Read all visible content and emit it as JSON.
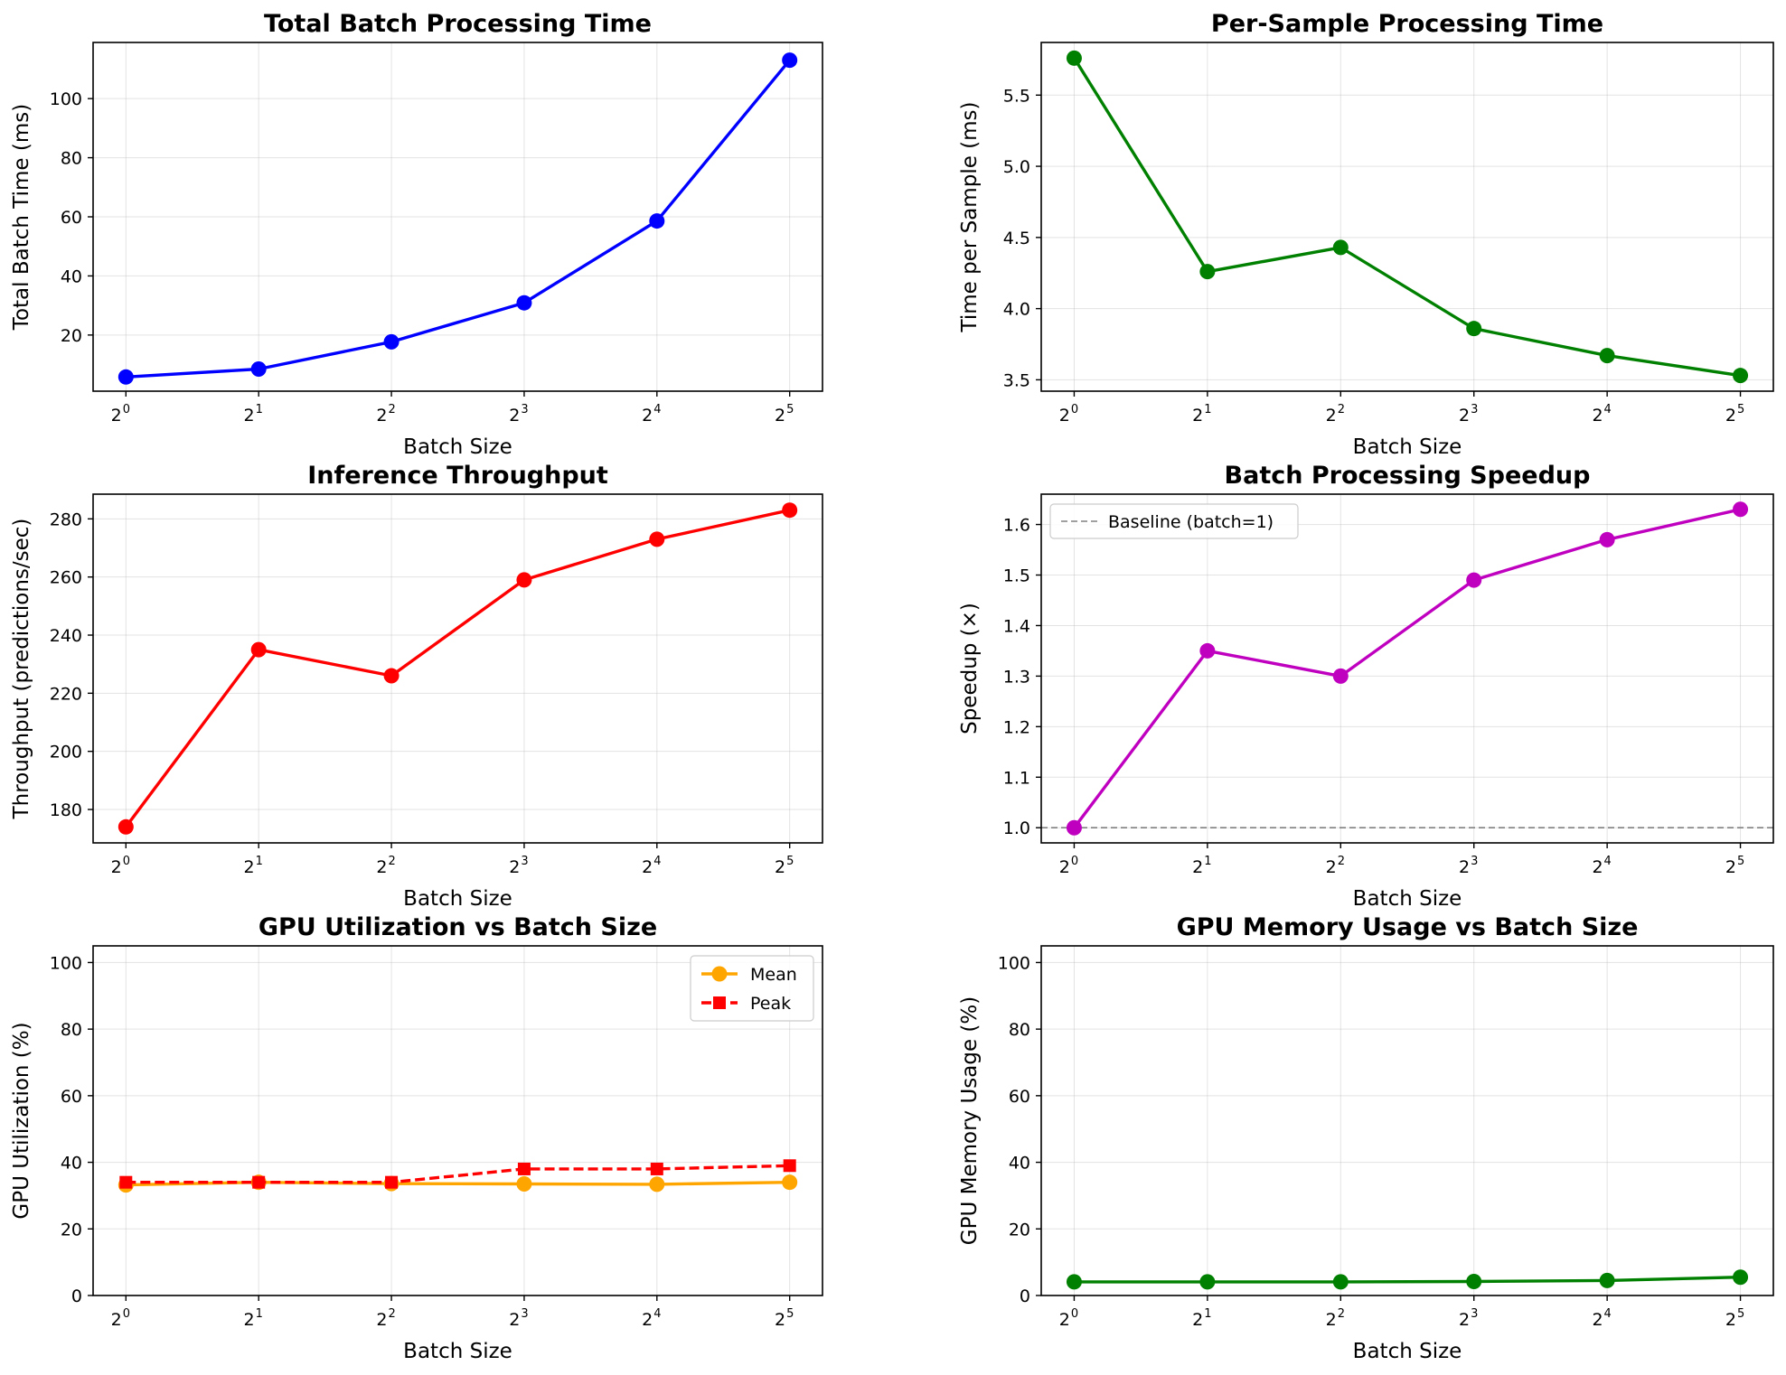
{
  "chart_data": [
    {
      "type": "line",
      "title": "Total Batch Processing Time",
      "xlabel": "Batch Size",
      "ylabel": "Total Batch Time (ms)",
      "x_scale": "log2",
      "x": [
        1,
        2,
        4,
        8,
        16,
        32
      ],
      "x_ticks": [
        "2^0",
        "2^1",
        "2^2",
        "2^3",
        "2^4",
        "2^5"
      ],
      "ylim": [
        1,
        119
      ],
      "y_ticks": [
        20,
        40,
        60,
        80,
        100
      ],
      "grid": true,
      "series": [
        {
          "values": [
            5.8,
            8.5,
            17.7,
            30.9,
            58.6,
            113.0
          ],
          "color": "#0000ff",
          "marker": "circle",
          "linestyle": "solid"
        }
      ]
    },
    {
      "type": "line",
      "title": "Per-Sample Processing Time",
      "xlabel": "Batch Size",
      "ylabel": "Time per Sample (ms)",
      "x_scale": "log2",
      "x": [
        1,
        2,
        4,
        8,
        16,
        32
      ],
      "x_ticks": [
        "2^0",
        "2^1",
        "2^2",
        "2^3",
        "2^4",
        "2^5"
      ],
      "ylim": [
        3.42,
        5.87
      ],
      "y_ticks": [
        3.5,
        4.0,
        4.5,
        5.0,
        5.5
      ],
      "grid": true,
      "series": [
        {
          "values": [
            5.76,
            4.26,
            4.43,
            3.86,
            3.67,
            3.53
          ],
          "color": "#008000",
          "marker": "circle",
          "linestyle": "solid"
        }
      ]
    },
    {
      "type": "line",
      "title": "Inference Throughput",
      "xlabel": "Batch Size",
      "ylabel": "Throughput (predictions/sec)",
      "x_scale": "log2",
      "x": [
        1,
        2,
        4,
        8,
        16,
        32
      ],
      "x_ticks": [
        "2^0",
        "2^1",
        "2^2",
        "2^3",
        "2^4",
        "2^5"
      ],
      "ylim": [
        168.5,
        288.5
      ],
      "y_ticks": [
        180,
        200,
        220,
        240,
        260,
        280
      ],
      "grid": true,
      "series": [
        {
          "values": [
            174,
            235,
            226,
            259,
            273,
            283
          ],
          "color": "#ff0000",
          "marker": "circle",
          "linestyle": "solid"
        }
      ]
    },
    {
      "type": "line",
      "title": "Batch Processing Speedup",
      "xlabel": "Batch Size",
      "ylabel": "Speedup (×)",
      "x_scale": "log2",
      "x": [
        1,
        2,
        4,
        8,
        16,
        32
      ],
      "x_ticks": [
        "2^0",
        "2^1",
        "2^2",
        "2^3",
        "2^4",
        "2^5"
      ],
      "ylim": [
        0.97,
        1.66
      ],
      "y_ticks": [
        1.0,
        1.1,
        1.2,
        1.3,
        1.4,
        1.5,
        1.6
      ],
      "grid": true,
      "legend": {
        "position": "upper-left",
        "entries": [
          "Baseline (batch=1)"
        ]
      },
      "reference_line": {
        "y": 1.0,
        "label": "Baseline (batch=1)",
        "color": "#808080",
        "linestyle": "dashed"
      },
      "series": [
        {
          "values": [
            1.0,
            1.35,
            1.3,
            1.49,
            1.57,
            1.63
          ],
          "color": "#bf00bf",
          "marker": "circle",
          "linestyle": "solid"
        }
      ]
    },
    {
      "type": "line",
      "title": "GPU Utilization vs Batch Size",
      "xlabel": "Batch Size",
      "ylabel": "GPU Utilization (%)",
      "x_scale": "log2",
      "x": [
        1,
        2,
        4,
        8,
        16,
        32
      ],
      "x_ticks": [
        "2^0",
        "2^1",
        "2^2",
        "2^3",
        "2^4",
        "2^5"
      ],
      "ylim": [
        0,
        105
      ],
      "y_ticks": [
        0,
        20,
        40,
        60,
        80,
        100
      ],
      "grid": true,
      "legend": {
        "position": "upper-right",
        "entries": [
          "Mean",
          "Peak"
        ]
      },
      "series": [
        {
          "name": "Mean",
          "values": [
            33.2,
            34.0,
            33.6,
            33.5,
            33.4,
            34.0
          ],
          "color": "#ffa500",
          "marker": "circle",
          "linestyle": "solid"
        },
        {
          "name": "Peak",
          "values": [
            34.0,
            34.0,
            34.0,
            38.0,
            38.0,
            39.0
          ],
          "color": "#ff0000",
          "marker": "square",
          "linestyle": "dashed"
        }
      ]
    },
    {
      "type": "line",
      "title": "GPU Memory Usage vs Batch Size",
      "xlabel": "Batch Size",
      "ylabel": "GPU Memory Usage (%)",
      "x_scale": "log2",
      "x": [
        1,
        2,
        4,
        8,
        16,
        32
      ],
      "x_ticks": [
        "2^0",
        "2^1",
        "2^2",
        "2^3",
        "2^4",
        "2^5"
      ],
      "ylim": [
        0,
        105
      ],
      "y_ticks": [
        0,
        20,
        40,
        60,
        80,
        100
      ],
      "grid": true,
      "series": [
        {
          "values": [
            4.1,
            4.1,
            4.1,
            4.2,
            4.5,
            5.5
          ],
          "color": "#008000",
          "marker": "circle",
          "linestyle": "solid"
        }
      ]
    }
  ]
}
